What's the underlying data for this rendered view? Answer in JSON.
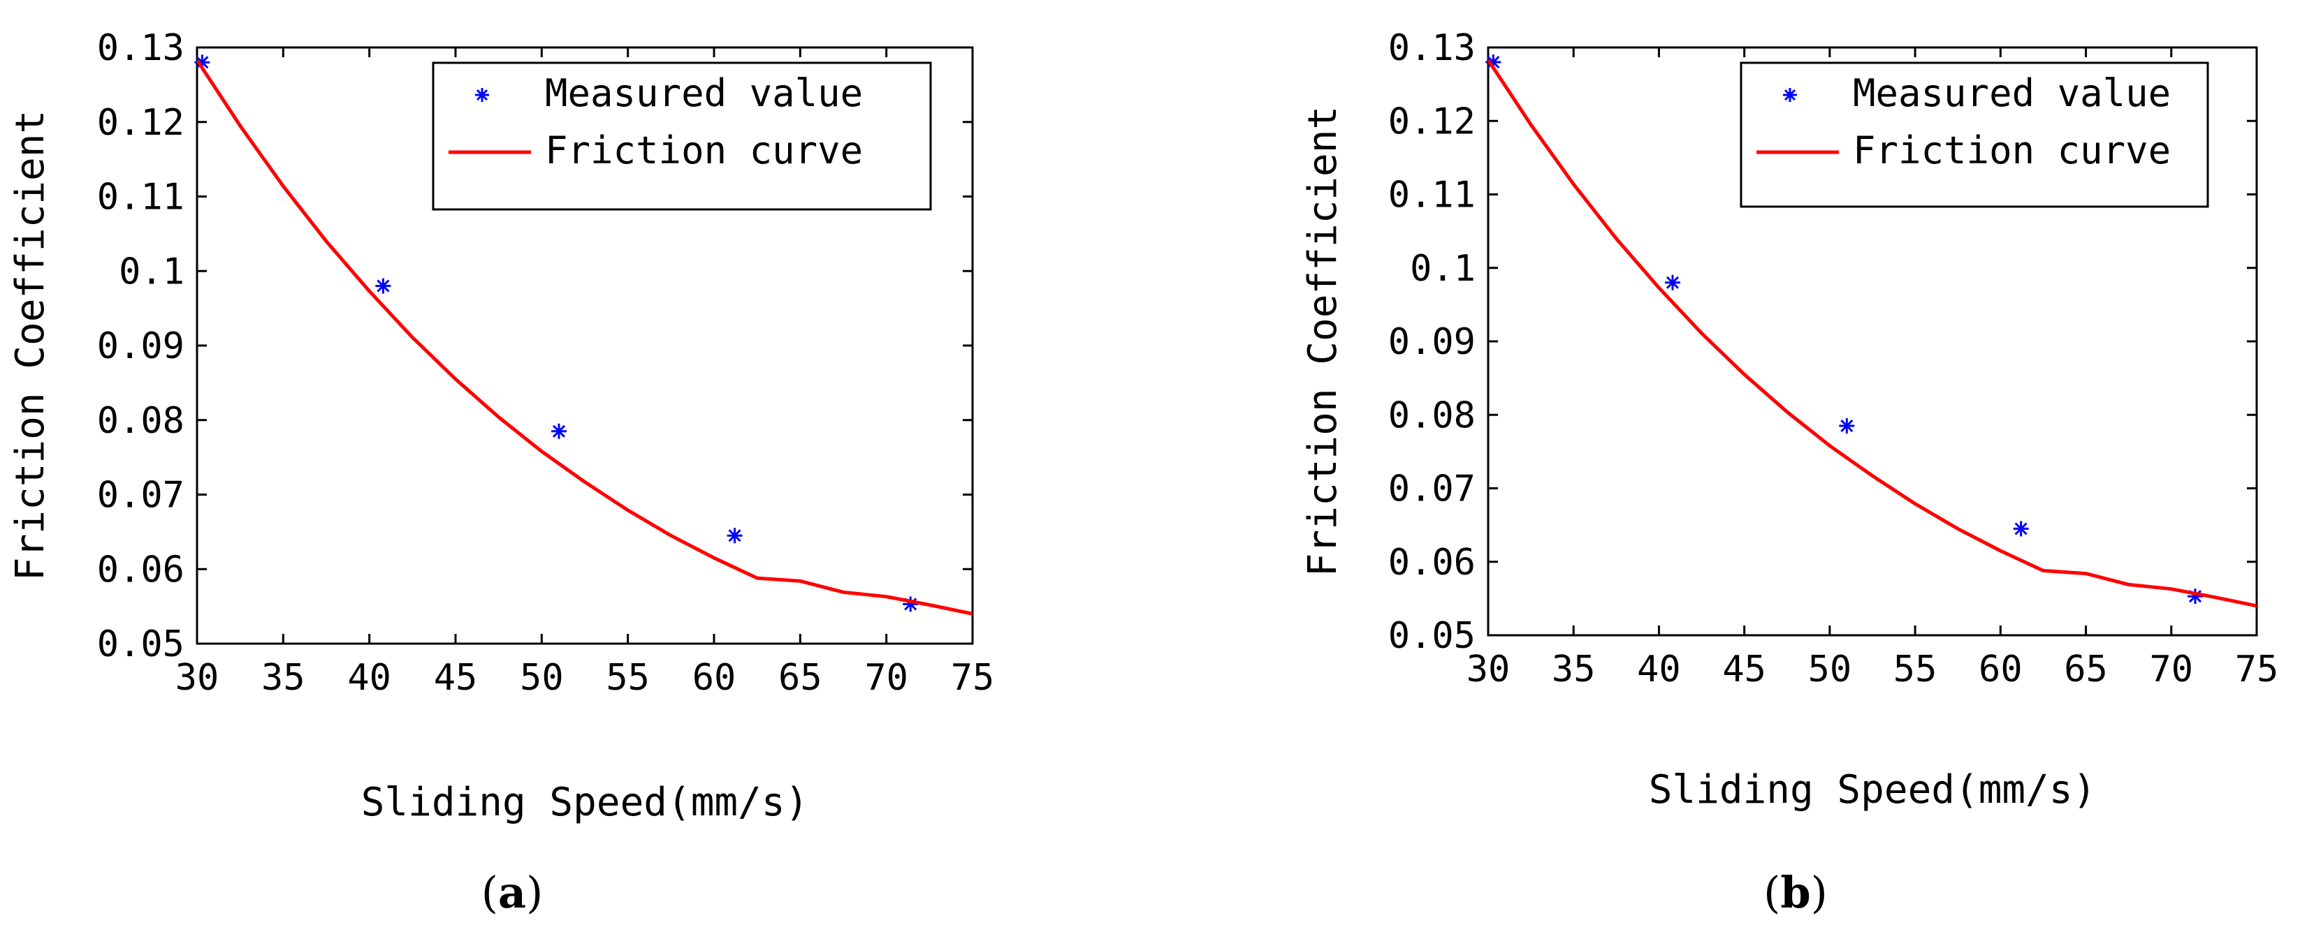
{
  "colors": {
    "curve": "#ff0000",
    "marker": "#0000ff",
    "axes": "#000000",
    "background": "#ffffff"
  },
  "chart_data": [
    {
      "type": "scatter",
      "panel": "a",
      "caption": {
        "open": "(",
        "letter": "a",
        "close": ")"
      },
      "xlabel": "Sliding Speed(mm/s)",
      "ylabel": "Friction Coefficient",
      "xlim": [
        30,
        75
      ],
      "ylim": [
        0.05,
        0.13
      ],
      "xticks": [
        "30",
        "35",
        "40",
        "45",
        "50",
        "55",
        "60",
        "65",
        "70",
        "75"
      ],
      "yticks": [
        "0.05",
        "0.06",
        "0.07",
        "0.08",
        "0.09",
        "0.1",
        "0.11",
        "0.12",
        "0.13"
      ],
      "legend_position": "top-right",
      "series": [
        {
          "name": "Measured value",
          "kind": "markers",
          "marker": "asterisk",
          "x": [
            30.3,
            40.8,
            51.0,
            61.2,
            71.4
          ],
          "y": [
            0.128,
            0.098,
            0.0785,
            0.0645,
            0.0553
          ]
        },
        {
          "name": "Friction curve",
          "kind": "line",
          "x": [
            30,
            32.5,
            35,
            37.5,
            40,
            42.5,
            45,
            47.5,
            50,
            52.5,
            55,
            57.5,
            60,
            62.5,
            65,
            67.5,
            70,
            72.5,
            75
          ],
          "y": [
            0.1283,
            0.1195,
            0.1114,
            0.104,
            0.0973,
            0.0911,
            0.0855,
            0.0804,
            0.0758,
            0.0717,
            0.0679,
            0.0645,
            0.0615,
            0.0588,
            0.0584,
            0.0569,
            0.0563,
            0.0552,
            0.054
          ]
        }
      ]
    },
    {
      "type": "scatter",
      "panel": "b",
      "caption": {
        "open": "(",
        "letter": "b",
        "close": ")"
      },
      "xlabel": "Sliding Speed(mm/s)",
      "ylabel": "Friction Coefficient",
      "xlim": [
        30,
        75
      ],
      "ylim": [
        0.05,
        0.13
      ],
      "xticks": [
        "30",
        "35",
        "40",
        "45",
        "50",
        "55",
        "60",
        "65",
        "70",
        "75"
      ],
      "yticks": [
        "0.05",
        "0.06",
        "0.07",
        "0.08",
        "0.09",
        "0.1",
        "0.11",
        "0.12",
        "0.13"
      ],
      "legend_position": "top-right",
      "series": [
        {
          "name": "Measured value",
          "kind": "markers",
          "marker": "asterisk",
          "x": [
            30.3,
            40.8,
            51.0,
            61.2,
            71.4
          ],
          "y": [
            0.128,
            0.098,
            0.0785,
            0.0645,
            0.0553
          ]
        },
        {
          "name": "Friction curve",
          "kind": "line",
          "x": [
            30,
            32.5,
            35,
            37.5,
            40,
            42.5,
            45,
            47.5,
            50,
            52.5,
            55,
            57.5,
            60,
            62.5,
            65,
            67.5,
            70,
            72.5,
            75
          ],
          "y": [
            0.1283,
            0.1195,
            0.1114,
            0.104,
            0.0973,
            0.0911,
            0.0855,
            0.0804,
            0.0758,
            0.0717,
            0.0679,
            0.0645,
            0.0615,
            0.0588,
            0.0584,
            0.0569,
            0.0563,
            0.0552,
            0.054
          ]
        }
      ]
    }
  ]
}
